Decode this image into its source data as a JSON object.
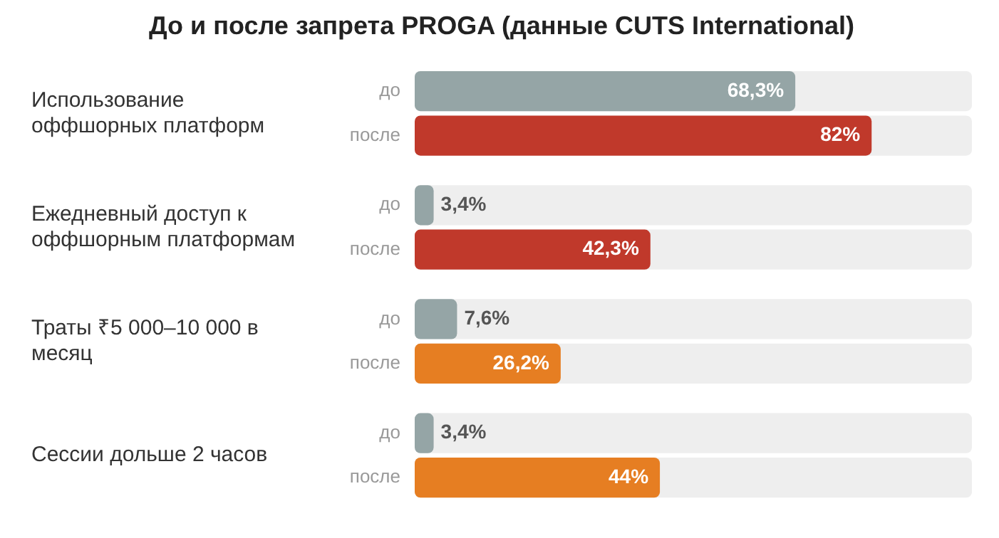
{
  "chart_data": {
    "type": "bar",
    "orientation": "horizontal",
    "title": "До и после запрета PROGA (данные CUTS International)",
    "categories": [
      "Использование оффшорных платформ",
      "Ежедневный доступ к оффшорным платформам",
      "Траты ₹5 000–10 000 в месяц",
      "Сессии дольше 2 часов"
    ],
    "series": [
      {
        "name": "до",
        "color": "#95a5a6",
        "values": [
          68.3,
          3.4,
          7.6,
          3.4
        ],
        "value_labels": [
          "68,3%",
          "3,4%",
          "7,6%",
          "3,4%"
        ]
      },
      {
        "name": "после",
        "colors": [
          "#c0392b",
          "#c0392b",
          "#e67e22",
          "#e67e22"
        ],
        "values": [
          82,
          42.3,
          26.2,
          44
        ],
        "value_labels": [
          "82%",
          "42,3%",
          "26,2%",
          "44%"
        ]
      }
    ],
    "xlim": [
      0,
      100
    ],
    "tick_labels": "y",
    "grid": false,
    "legend": false
  }
}
